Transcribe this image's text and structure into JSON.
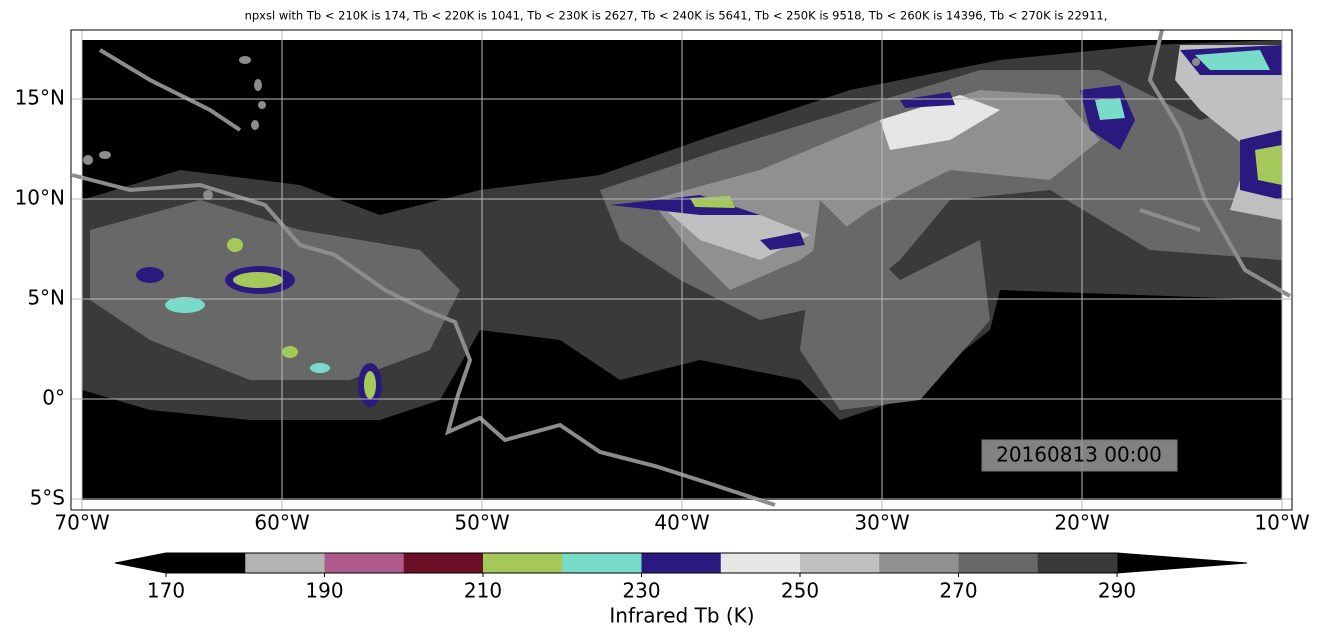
{
  "title": "npxsl with Tb < 210K is 174,  Tb < 220K is 1041,  Tb < 230K is 2627,  Tb < 240K is 5641,  Tb < 250K is 9518,  Tb < 260K is 14396,  Tb < 270K is 22911,",
  "map": {
    "xlim": [
      -70.55,
      -9.5
    ],
    "ylim": [
      -5.55,
      18.45
    ],
    "xticks": [
      {
        "value": -70,
        "label": "70°W"
      },
      {
        "value": -60,
        "label": "60°W"
      },
      {
        "value": -50,
        "label": "50°W"
      },
      {
        "value": -40,
        "label": "40°W"
      },
      {
        "value": -30,
        "label": "30°W"
      },
      {
        "value": -20,
        "label": "20°W"
      },
      {
        "value": -10,
        "label": "10°W"
      }
    ],
    "yticks": [
      {
        "value": -5,
        "label": "5°S"
      },
      {
        "value": 0,
        "label": "0°"
      },
      {
        "value": 5,
        "label": "5°N"
      },
      {
        "value": 10,
        "label": "10°N"
      },
      {
        "value": 15,
        "label": "15°N"
      }
    ],
    "grid": true,
    "timestamp": "20160813 00:00"
  },
  "colorbar": {
    "label": "Infrared Tb (K)",
    "levels": [
      170,
      180,
      190,
      200,
      210,
      220,
      230,
      240,
      250,
      260,
      270,
      280,
      290
    ],
    "colors": [
      "#000000",
      "#b4b4b4",
      "#b05a8c",
      "#6a0f25",
      "#a5c85a",
      "#78dcc8",
      "#2a1a80",
      "#e6e6e6",
      "#c0c0c0",
      "#909090",
      "#686868",
      "#3a3a3a"
    ],
    "under_color": "#000000",
    "over_color": "#000000",
    "ticks": [
      170,
      190,
      210,
      230,
      250,
      270,
      290
    ]
  }
}
